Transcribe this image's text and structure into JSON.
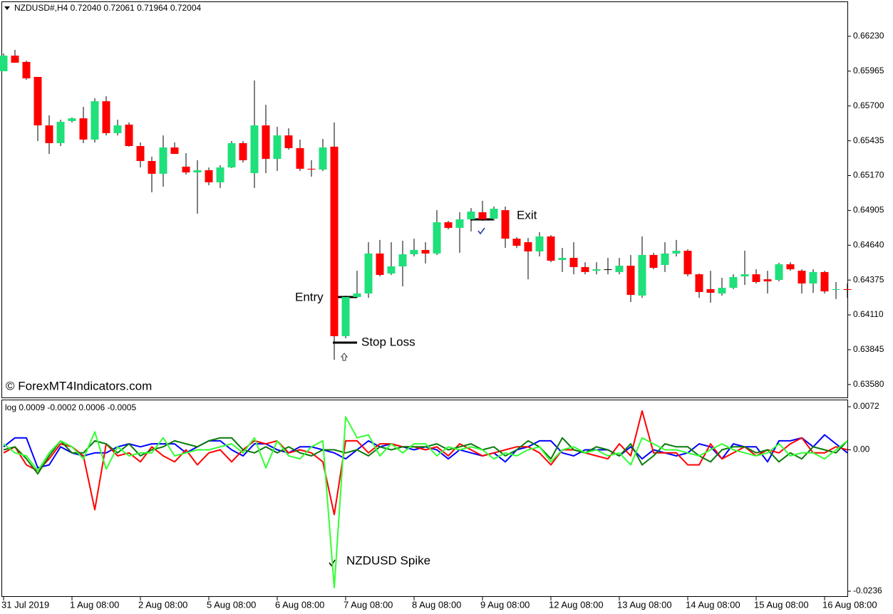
{
  "chart_data": [
    {
      "type": "candlestick",
      "title": "NZDUSD#,H4  0.72040 0.72061 0.71964 0.72004",
      "watermark": "© ForexMT4Indicators.com",
      "annotations": [
        "Entry",
        "Stop Loss",
        "Exit"
      ],
      "up_color": "#1fe07a",
      "down_color": "#ff0000",
      "open": [
        0.65964,
        0.66083,
        0.66035,
        0.65921,
        0.65552,
        0.65417,
        0.65585,
        0.65606,
        0.65444,
        0.65736,
        0.65493,
        0.65558,
        0.65395,
        0.65281,
        0.65184,
        0.65384,
        0.65238,
        0.65194,
        0.65211,
        0.65119,
        0.65232,
        0.65417,
        0.65189,
        0.65552,
        0.65297,
        0.65476,
        0.65379,
        0.65222,
        0.65216,
        0.6539,
        0.63948,
        0.64246,
        0.64273,
        0.64577,
        0.64425,
        0.64479,
        0.64571,
        0.64604,
        0.64577,
        0.64815,
        0.64772,
        0.64837,
        0.64891,
        0.64842,
        0.64907,
        0.6469,
        0.64663,
        0.64593,
        0.64707,
        0.64528,
        0.64544,
        0.64474,
        0.64446,
        0.64457,
        0.64436,
        0.64484,
        0.64257,
        0.64566,
        0.6449,
        0.64577,
        0.64598,
        0.64419,
        0.64306,
        0.64273,
        0.64316,
        0.64403,
        0.64419,
        0.64381,
        0.64376,
        0.64495,
        0.64446,
        0.64349,
        0.64436,
        0.643,
        0.64306
      ],
      "high": [
        0.661,
        0.66127,
        0.66045,
        0.65921,
        0.65628,
        0.65595,
        0.65612,
        0.65693,
        0.65758,
        0.65774,
        0.65595,
        0.65574,
        0.65422,
        0.65314,
        0.65476,
        0.65422,
        0.65341,
        0.65287,
        0.65232,
        0.65249,
        0.65433,
        0.65433,
        0.65894,
        0.65709,
        0.65541,
        0.6553,
        0.65444,
        0.65287,
        0.65449,
        0.65574,
        0.64257,
        0.64446,
        0.64663,
        0.6468,
        0.64663,
        0.64674,
        0.6469,
        0.64663,
        0.64907,
        0.64826,
        0.64891,
        0.64923,
        0.64978,
        0.64934,
        0.64934,
        0.64701,
        0.64696,
        0.64739,
        0.64717,
        0.6462,
        0.64663,
        0.64511,
        0.64511,
        0.64544,
        0.64544,
        0.64566,
        0.64707,
        0.64582,
        0.64663,
        0.6468,
        0.64609,
        0.64425,
        0.64446,
        0.64392,
        0.64419,
        0.64598,
        0.64457,
        0.64446,
        0.64506,
        0.64511,
        0.64457,
        0.64457,
        0.64446,
        0.6436,
        0.64349
      ],
      "low": [
        0.65964,
        0.66029,
        0.65899,
        0.65433,
        0.65335,
        0.65395,
        0.65574,
        0.65417,
        0.65422,
        0.65476,
        0.65476,
        0.6539,
        0.65232,
        0.65043,
        0.65086,
        0.65335,
        0.65178,
        0.6488,
        0.65097,
        0.65075,
        0.65227,
        0.6527,
        0.65075,
        0.65189,
        0.65205,
        0.65368,
        0.65205,
        0.65162,
        0.65205,
        0.63769,
        0.63932,
        0.6424,
        0.6424,
        0.64403,
        0.64414,
        0.64327,
        0.64555,
        0.64501,
        0.64566,
        0.64761,
        0.64582,
        0.64745,
        0.64826,
        0.64826,
        0.6462,
        0.6462,
        0.64381,
        0.64555,
        0.64511,
        0.64436,
        0.64419,
        0.64419,
        0.64419,
        0.64419,
        0.64419,
        0.64208,
        0.6424,
        0.64457,
        0.64436,
        0.64555,
        0.64403,
        0.6424,
        0.64203,
        0.64257,
        0.64306,
        0.64338,
        0.64349,
        0.64273,
        0.64365,
        0.64446,
        0.64273,
        0.64278,
        0.64273,
        0.6423,
        0.6424
      ],
      "close": [
        0.66083,
        0.66029,
        0.6591,
        0.65552,
        0.65417,
        0.65579,
        0.65606,
        0.65444,
        0.65736,
        0.65493,
        0.65552,
        0.65395,
        0.65281,
        0.65184,
        0.65384,
        0.65335,
        0.65194,
        0.65211,
        0.65119,
        0.65232,
        0.65417,
        0.65287,
        0.65552,
        0.65297,
        0.65476,
        0.65379,
        0.65222,
        0.65216,
        0.65384,
        0.63948,
        0.64246,
        0.64273,
        0.64577,
        0.64414,
        0.64479,
        0.64571,
        0.64604,
        0.64577,
        0.64815,
        0.64772,
        0.64837,
        0.64896,
        0.64837,
        0.64918,
        0.6469,
        0.64636,
        0.64593,
        0.64707,
        0.64522,
        0.64544,
        0.64474,
        0.64436,
        0.64457,
        0.64452,
        0.64484,
        0.64262,
        0.64566,
        0.64468,
        0.64577,
        0.64598,
        0.64419,
        0.64284,
        0.64278,
        0.64316,
        0.64398,
        0.64419,
        0.6436,
        0.64365,
        0.64495,
        0.64457,
        0.64349,
        0.64436,
        0.64289,
        0.64306,
        0.643
      ],
      "ylim": [
        0.63487,
        0.6649
      ],
      "yticks": [
        {
          "value": 0.6623,
          "label": "0.66230"
        },
        {
          "value": 0.65965,
          "label": "0.65965"
        },
        {
          "value": 0.657,
          "label": "0.65700"
        },
        {
          "value": 0.65435,
          "label": "0.65435"
        },
        {
          "value": 0.6517,
          "label": "0.65170"
        },
        {
          "value": 0.64905,
          "label": "0.64905"
        },
        {
          "value": 0.6464,
          "label": "0.64640"
        },
        {
          "value": 0.64375,
          "label": "0.64375"
        },
        {
          "value": 0.6411,
          "label": "0.64110"
        },
        {
          "value": 0.63845,
          "label": "0.63845"
        },
        {
          "value": 0.6358,
          "label": "0.63580"
        }
      ]
    },
    {
      "type": "line",
      "title": "log 0.0009 -0.0002 0.0006 -0.0005",
      "annotation": "NZDUSD Spike",
      "x": [
        "31 Jul 2019",
        null,
        null,
        null,
        null,
        null,
        "1 Aug 08:00",
        null,
        null,
        null,
        null,
        null,
        "2 Aug 08:00",
        null,
        null,
        null,
        null,
        null,
        "5 Aug 08:00",
        null,
        null,
        null,
        null,
        null,
        "6 Aug 08:00",
        null,
        null,
        null,
        null,
        null,
        "7 Aug 08:00",
        null,
        null,
        null,
        null,
        null,
        "8 Aug 08:00",
        null,
        null,
        null,
        null,
        null,
        "9 Aug 08:00",
        null,
        null,
        null,
        null,
        null,
        "12 Aug 08:00",
        null,
        null,
        null,
        null,
        null,
        "13 Aug 08:00",
        null,
        null,
        null,
        null,
        null,
        "14 Aug 08:00",
        null,
        null,
        null,
        null,
        null,
        "15 Aug 08:00",
        null,
        null,
        null,
        null,
        null,
        "16 Aug 08:00",
        null,
        null
      ],
      "series": [
        {
          "color": "#0000ff",
          "values": [
            0.0005,
            0.002,
            0.002,
            -0.003,
            -0.0025,
            0.0005,
            -0.0005,
            -0.001,
            -0.0005,
            -0.0005,
            0.0005,
            0.001,
            0.0005,
            0.001,
            0.001,
            0.001,
            -0.0005,
            0.0005,
            0.0015,
            0.0015,
            0,
            -0.001,
            0.001,
            0.001,
            0,
            -0.0005,
            0.0005,
            0.0005,
            0,
            -0.0005,
            -0.0015,
            0,
            0.0015,
            0.0005,
            0.001,
            0.0005,
            0,
            0.0005,
            0,
            -0.0015,
            0,
            -0.0005,
            -0.001,
            -0.0005,
            -0.002,
            0,
            0.0005,
            0.0015,
            0.0015,
            -0.0005,
            -0.001,
            0,
            0,
            0,
            -0.001,
            0.0005,
            -0.0015,
            0,
            -0.0005,
            -0.001,
            -0.0005,
            0.001,
            0.0005,
            -0.0015,
            0.001,
            0.0005,
            0.0005,
            -0.002,
            0.0015,
            0.0015,
            0.002,
            0.0005,
            0.0025,
            0.001,
            -0.0005
          ]
        },
        {
          "color": "#ff0000",
          "values": [
            -0.0005,
            0.0005,
            -0.0025,
            -0.0035,
            -0.0015,
            0.001,
            0.0005,
            -0.001,
            -0.01,
            0.001,
            -0.001,
            -0.0005,
            -0.002,
            0.0005,
            -0.001,
            -0.002,
            0,
            -0.0025,
            -0.0005,
            0,
            -0.002,
            0,
            0.0015,
            0.001,
            0.0015,
            -0.0005,
            0,
            -0.0005,
            -0.002,
            -0.0108,
            0.0015,
            0.0015,
            -0.0005,
            0.001,
            0.001,
            0.0005,
            0.0005,
            0,
            0.0005,
            -0.001,
            0.001,
            0,
            -0.001,
            -0.0005,
            0,
            0.0005,
            0.0005,
            -0.0005,
            -0.0025,
            0,
            0,
            -0.0005,
            -0.001,
            -0.0015,
            0.001,
            -0.001,
            0.0065,
            -0.0005,
            -0.0005,
            -0.0005,
            -0.0025,
            -0.0025,
            0.001,
            -0.0015,
            -0.0005,
            0.0005,
            -0.001,
            0,
            -0.0005,
            0.001,
            0.002,
            -0.0005,
            -0.0005,
            0.0005,
            0
          ]
        },
        {
          "color": "#0a7a0a",
          "values": [
            0,
            0.0005,
            -0.0015,
            -0.004,
            -0.001,
            0.0015,
            -0.0005,
            -0.0005,
            0.0015,
            0.001,
            -0.0005,
            0.001,
            -0.001,
            0,
            0.0005,
            0.0015,
            0.001,
            0.0005,
            0.0015,
            0.002,
            0.002,
            0,
            -0.0005,
            0.0005,
            -0.0005,
            0.0005,
            -0.0005,
            -0.001,
            0,
            0,
            -0.0005,
            0,
            -0.001,
            0.0005,
            0,
            0.0005,
            0.0005,
            0.0005,
            0.001,
            0,
            0.0005,
            0.001,
            0,
            0.0005,
            -0.001,
            0,
            0.0015,
            0.0005,
            -0.0015,
            0.002,
            0,
            -0.0005,
            0.0005,
            0,
            -0.001,
            0.001,
            -0.0025,
            -0.001,
            0.001,
            0.0005,
            0.0005,
            -0.001,
            -0.002,
            0,
            0.0005,
            0.0005,
            -0.0005,
            0,
            -0.002,
            -0.0005,
            -0.0015,
            0.0005,
            0,
            -0.0005,
            0.0015
          ]
        },
        {
          "color": "#33ff33",
          "values": [
            0.001,
            -0.0005,
            -0.001,
            -0.0035,
            -0.0005,
            0.0015,
            0.0005,
            -0.0015,
            0.003,
            -0.0032,
            0.0005,
            -0.001,
            -0.0005,
            -0.0005,
            0.002,
            -0.001,
            -0.0005,
            0,
            0,
            0.0005,
            0.001,
            -0.0005,
            0.002,
            -0.003,
            0.0015,
            -0.001,
            -0.0015,
            0.0005,
            0.0015,
            -0.023,
            0.0055,
            0.002,
            0.0025,
            -0.001,
            0.001,
            -0.0005,
            0.001,
            0.001,
            -0.001,
            0.0005,
            0,
            0.0005,
            0,
            -0.0015,
            -0.0005,
            -0.001,
            0,
            0.0005,
            -0.002,
            0,
            0.0005,
            -0.0005,
            0,
            -0.001,
            -0.0005,
            -0.0025,
            0.002,
            0.001,
            0,
            0,
            -0.0005,
            -0.001,
            0,
            0.001,
            0,
            -0.0005,
            -0.001,
            -0.0005,
            0.001,
            -0.001,
            -0.0005,
            -0.0005,
            -0.0015,
            0,
            0.0015
          ]
        }
      ],
      "ylim": [
        -0.0236,
        0.0072
      ],
      "yticks": [
        0.0072,
        {
          "value": 0,
          "label": "0.00"
        },
        -0.0236
      ]
    }
  ]
}
